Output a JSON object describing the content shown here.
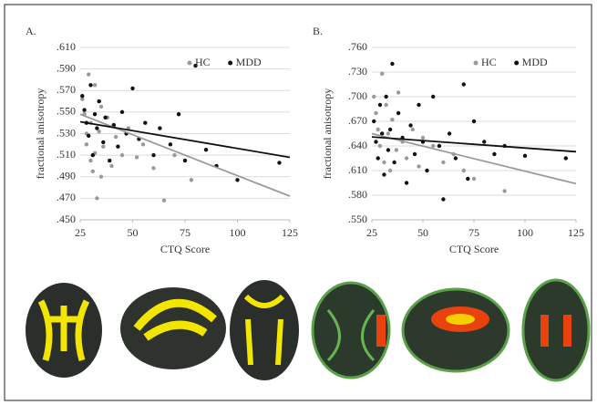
{
  "chart_data": [
    {
      "type": "scatter",
      "panel": "A.",
      "xlabel": "CTQ Score",
      "ylabel": "fractional anisotropy",
      "xlim": [
        25,
        125
      ],
      "xticks": [
        25,
        50,
        75,
        100,
        125
      ],
      "ylim": [
        0.45,
        0.61
      ],
      "yticks": [
        {
          "value": 0.45,
          "label": ".450"
        },
        {
          "value": 0.47,
          "label": ".470"
        },
        {
          "value": 0.49,
          "label": ".490"
        },
        {
          "value": 0.51,
          "label": ".510"
        },
        {
          "value": 0.53,
          "label": ".530"
        },
        {
          "value": 0.55,
          "label": ".550"
        },
        {
          "value": 0.57,
          "label": ".570"
        },
        {
          "value": 0.59,
          "label": ".590"
        },
        {
          "value": 0.61,
          "label": ".610"
        }
      ],
      "grid": true,
      "legend": "upper right",
      "series": [
        {
          "name": "HC",
          "color": "#9a9a9a",
          "x": [
            26,
            27,
            28,
            28,
            29,
            30,
            30,
            31,
            32,
            32,
            33,
            34,
            35,
            35,
            36,
            38,
            40,
            42,
            45,
            48,
            52,
            55,
            60,
            65,
            70,
            78
          ],
          "values": [
            0.562,
            0.548,
            0.53,
            0.52,
            0.585,
            0.505,
            0.54,
            0.495,
            0.575,
            0.512,
            0.47,
            0.532,
            0.555,
            0.49,
            0.518,
            0.545,
            0.5,
            0.527,
            0.51,
            0.535,
            0.508,
            0.52,
            0.498,
            0.468,
            0.51,
            0.487
          ],
          "trend": {
            "x": [
              25,
              125
            ],
            "y": [
              0.548,
              0.472
            ]
          }
        },
        {
          "name": "MDD",
          "color": "#111111",
          "x": [
            26,
            27,
            28,
            29,
            30,
            31,
            32,
            33,
            34,
            36,
            37,
            39,
            41,
            43,
            45,
            47,
            50,
            53,
            56,
            60,
            63,
            68,
            72,
            75,
            80,
            85,
            90,
            100,
            120
          ],
          "values": [
            0.565,
            0.552,
            0.54,
            0.528,
            0.575,
            0.51,
            0.548,
            0.535,
            0.56,
            0.522,
            0.545,
            0.505,
            0.538,
            0.518,
            0.55,
            0.53,
            0.572,
            0.525,
            0.54,
            0.51,
            0.535,
            0.52,
            0.548,
            0.505,
            0.593,
            0.515,
            0.5,
            0.487,
            0.503
          ],
          "trend": {
            "x": [
              25,
              125
            ],
            "y": [
              0.541,
              0.508
            ]
          }
        }
      ]
    },
    {
      "type": "scatter",
      "panel": "B.",
      "xlabel": "CTQ Score",
      "ylabel": "fractional anisotropy",
      "xlim": [
        25,
        125
      ],
      "xticks": [
        25,
        50,
        75,
        100,
        125
      ],
      "ylim": [
        0.55,
        0.76
      ],
      "yticks": [
        {
          "value": 0.55,
          "label": ".550"
        },
        {
          "value": 0.58,
          "label": ".580"
        },
        {
          "value": 0.61,
          "label": ".610"
        },
        {
          "value": 0.64,
          "label": ".640"
        },
        {
          "value": 0.67,
          "label": ".670"
        },
        {
          "value": 0.7,
          "label": ".700"
        },
        {
          "value": 0.73,
          "label": ".730"
        },
        {
          "value": 0.76,
          "label": ".760"
        }
      ],
      "grid": true,
      "legend": "upper right",
      "series": [
        {
          "name": "HC",
          "color": "#9a9a9a",
          "x": [
            26,
            27,
            28,
            29,
            30,
            31,
            32,
            33,
            34,
            35,
            37,
            38,
            40,
            42,
            45,
            48,
            50,
            55,
            60,
            65,
            70,
            75,
            90
          ],
          "values": [
            0.7,
            0.68,
            0.66,
            0.64,
            0.728,
            0.62,
            0.69,
            0.655,
            0.61,
            0.672,
            0.635,
            0.705,
            0.645,
            0.625,
            0.66,
            0.615,
            0.65,
            0.64,
            0.62,
            0.63,
            0.61,
            0.6,
            0.585
          ],
          "trend": {
            "x": [
              25,
              125
            ],
            "y": [
              0.655,
              0.594
            ]
          }
        },
        {
          "name": "MDD",
          "color": "#111111",
          "x": [
            26,
            27,
            28,
            29,
            30,
            31,
            32,
            33,
            34,
            35,
            36,
            38,
            40,
            42,
            44,
            46,
            48,
            50,
            52,
            55,
            58,
            60,
            63,
            66,
            70,
            72,
            75,
            80,
            85,
            90,
            100,
            120
          ],
          "values": [
            0.67,
            0.645,
            0.625,
            0.69,
            0.655,
            0.605,
            0.7,
            0.635,
            0.66,
            0.74,
            0.62,
            0.68,
            0.65,
            0.595,
            0.665,
            0.63,
            0.69,
            0.645,
            0.61,
            0.7,
            0.64,
            0.575,
            0.655,
            0.625,
            0.715,
            0.6,
            0.67,
            0.645,
            0.63,
            0.64,
            0.628,
            0.625
          ],
          "trend": {
            "x": [
              25,
              125
            ],
            "y": [
              0.651,
              0.633
            ]
          }
        }
      ]
    }
  ]
}
